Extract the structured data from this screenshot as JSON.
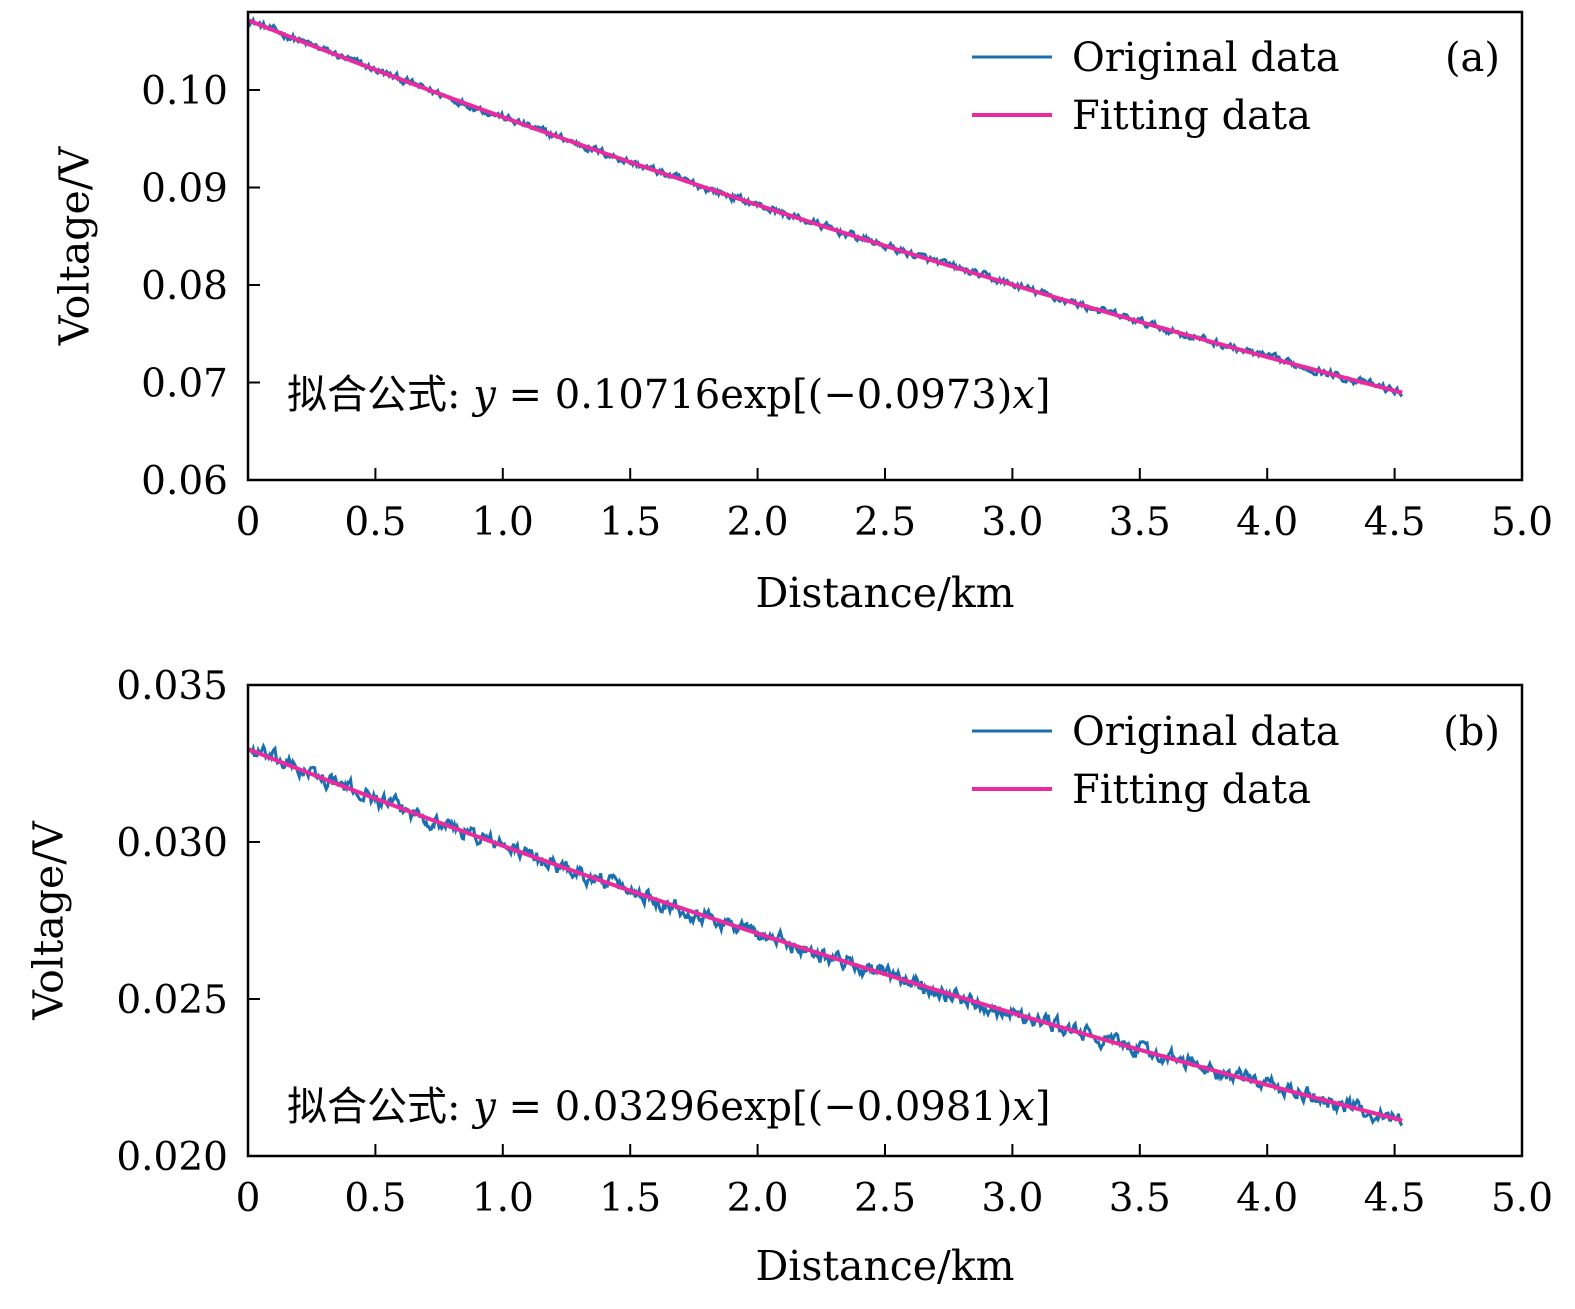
{
  "colors": {
    "original": "#1a6fb0",
    "fitting": "#ea2a9e",
    "axis": "#000000"
  },
  "chart_data": [
    {
      "type": "line",
      "panel_label": "(a)",
      "xlabel": "Distance/km",
      "ylabel": "Voltage/V",
      "xlim": [
        0,
        5.0
      ],
      "ylim": [
        0.06,
        0.108
      ],
      "x_ticks": [
        0,
        0.5,
        1.0,
        1.5,
        2.0,
        2.5,
        3.0,
        3.5,
        4.0,
        4.5,
        5.0
      ],
      "x_tick_labels": [
        "0",
        "0.5",
        "1.0",
        "1.5",
        "2.0",
        "2.5",
        "3.0",
        "3.5",
        "4.0",
        "4.5",
        "5.0"
      ],
      "y_ticks": [
        0.06,
        0.07,
        0.08,
        0.09,
        0.1
      ],
      "y_tick_labels": [
        "0.06",
        "0.07",
        "0.08",
        "0.09",
        "0.10"
      ],
      "legend": [
        "Original data",
        "Fitting data"
      ],
      "legend_position": "top-right",
      "formula": {
        "prefix": "拟合公式: ",
        "y": "y",
        "eq": " = ",
        "coef": "0.10716",
        "exp_open": "exp[(",
        "rate": "−0.0973",
        "close_paren": ")",
        "x": "x",
        "close_bracket": "]"
      },
      "series": [
        {
          "name": "Original data",
          "a": 0.10716,
          "b": -0.0973,
          "x_range": [
            0,
            4.53
          ],
          "noise_amplitude": 0.00045
        },
        {
          "name": "Fitting data",
          "a": 0.10716,
          "b": -0.0973,
          "x_range": [
            0,
            4.53
          ]
        }
      ]
    },
    {
      "type": "line",
      "panel_label": "(b)",
      "xlabel": "Distance/km",
      "ylabel": "Voltage/V",
      "xlim": [
        0,
        5.0
      ],
      "ylim": [
        0.02,
        0.035
      ],
      "x_ticks": [
        0,
        0.5,
        1.0,
        1.5,
        2.0,
        2.5,
        3.0,
        3.5,
        4.0,
        4.5,
        5.0
      ],
      "x_tick_labels": [
        "0",
        "0.5",
        "1.0",
        "1.5",
        "2.0",
        "2.5",
        "3.0",
        "3.5",
        "4.0",
        "4.5",
        "5.0"
      ],
      "y_ticks": [
        0.02,
        0.025,
        0.03,
        0.035
      ],
      "y_tick_labels": [
        "0.020",
        "0.025",
        "0.030",
        "0.035"
      ],
      "legend": [
        "Original data",
        "Fitting data"
      ],
      "legend_position": "top-right",
      "formula": {
        "prefix": "拟合公式: ",
        "y": "y",
        "eq": " = ",
        "coef": "0.03296",
        "exp_open": "exp[(",
        "rate": "−0.0981",
        "close_paren": ")",
        "x": "x",
        "close_bracket": "]"
      },
      "series": [
        {
          "name": "Original data",
          "a": 0.03296,
          "b": -0.0981,
          "x_range": [
            0,
            4.53
          ],
          "noise_amplitude": 0.00028
        },
        {
          "name": "Fitting data",
          "a": 0.03296,
          "b": -0.0981,
          "x_range": [
            0,
            4.53
          ]
        }
      ]
    }
  ]
}
